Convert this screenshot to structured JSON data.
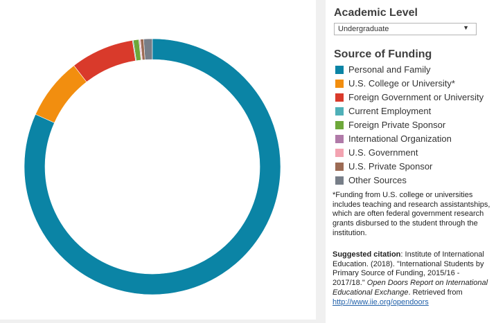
{
  "colors": {
    "personal": "#0b84a5",
    "us_college": "#f28e0f",
    "foreign_gov": "#d93a2b",
    "employment": "#4fb0b8",
    "foreign_private": "#6ea83a",
    "intl_org": "#b07aa8",
    "us_gov": "#f3a3b1",
    "us_private": "#9c6b54",
    "other": "#777e88"
  },
  "filters": {
    "academic_level_title": "Academic Level",
    "academic_level_value": "Undergraduate",
    "dropdown_icon": "triangle-down-icon"
  },
  "legend": {
    "title": "Source of Funding",
    "items": [
      {
        "label": "Personal and Family",
        "color": "#0b84a5"
      },
      {
        "label": "U.S. College or University*",
        "color": "#f28e0f"
      },
      {
        "label": "Foreign Government or University",
        "color": "#d93a2b"
      },
      {
        "label": "Current Employment",
        "color": "#4fb0b8"
      },
      {
        "label": "Foreign Private Sponsor",
        "color": "#6ea83a"
      },
      {
        "label": "International Organization",
        "color": "#b07aa8"
      },
      {
        "label": "U.S. Government",
        "color": "#f3a3b1"
      },
      {
        "label": "U.S. Private Sponsor",
        "color": "#9c6b54"
      },
      {
        "label": "Other Sources",
        "color": "#777e88"
      }
    ]
  },
  "footnote": "*Funding from U.S. college or universities includes teaching and research assistantships, which are often federal government research grants disbursed to the student through the institution.",
  "citation": {
    "label": "Suggested citation",
    "text1": ": Institute of International Education. (2018). \"International Students by Primary Source of Funding, 2015/16 - 2017/18.\" ",
    "italic": "Open Doors Report on International Educational Exchange",
    "text2": ". Retrieved from ",
    "link": "http://www.iie.org/opendoors"
  },
  "chart_data": {
    "type": "pie",
    "donut": true,
    "categories": [
      "Personal and Family",
      "U.S. College or University*",
      "Foreign Government or University",
      "Current Employment",
      "Foreign Private Sponsor",
      "International Organization",
      "U.S. Government",
      "U.S. Private Sponsor",
      "Other Sources"
    ],
    "values": [
      81.7,
      7.8,
      8.0,
      0.1,
      0.7,
      0.1,
      0.1,
      0.4,
      1.1
    ],
    "title": "",
    "legend_position": "right"
  }
}
